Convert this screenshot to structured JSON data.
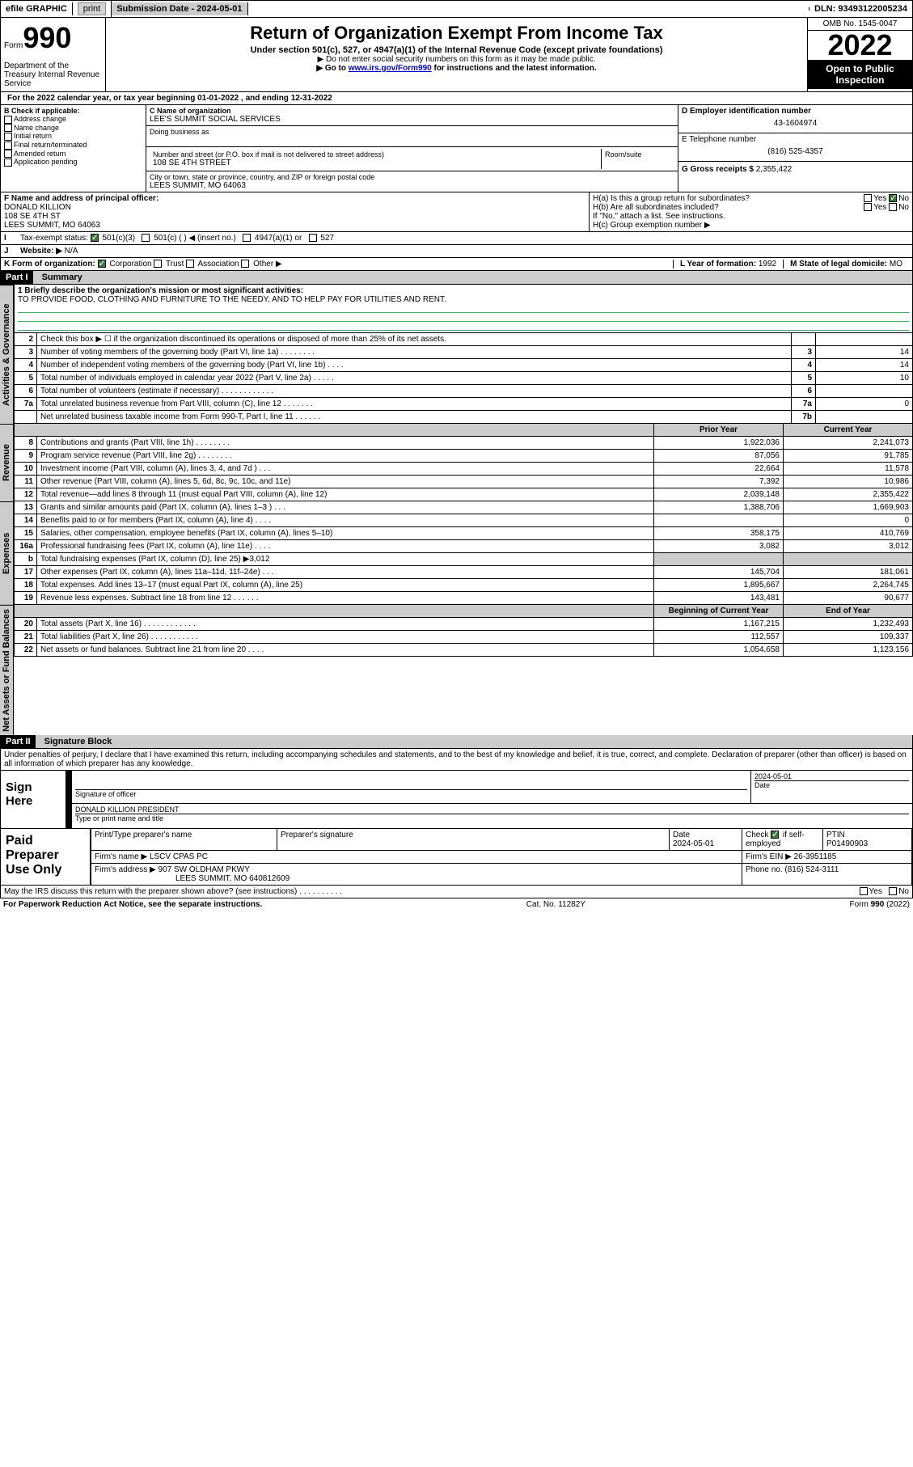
{
  "topbar": {
    "efile": "efile GRAPHIC",
    "print": "print",
    "subdate_label": "Submission Date - 2024-05-01",
    "dln": "DLN: 93493122005234"
  },
  "header": {
    "form_label": "Form",
    "form_no": "990",
    "title": "Return of Organization Exempt From Income Tax",
    "subtitle": "Under section 501(c), 527, or 4947(a)(1) of the Internal Revenue Code (except private foundations)",
    "note1": "▶ Do not enter social security numbers on this form as it may be made public.",
    "note2_pre": "▶ Go to ",
    "note2_link": "www.irs.gov/Form990",
    "note2_post": " for instructions and the latest information.",
    "omb": "OMB No. 1545-0047",
    "year": "2022",
    "open": "Open to Public Inspection",
    "dept": "Department of the Treasury Internal Revenue Service"
  },
  "lineA": "For the 2022 calendar year, or tax year beginning 01-01-2022    , and ending 12-31-2022",
  "boxB": {
    "label": "B Check if applicable:",
    "opts": [
      "Address change",
      "Name change",
      "Initial return",
      "Final return/terminated",
      "Amended return",
      "Application pending"
    ]
  },
  "boxC": {
    "name_label": "C Name of organization",
    "name": "LEE'S SUMMIT SOCIAL SERVICES",
    "dba_label": "Doing business as",
    "street_label": "Number and street (or P.O. box if mail is not delivered to street address)",
    "room_label": "Room/suite",
    "street": "108 SE 4TH STREET",
    "city_label": "City or town, state or province, country, and ZIP or foreign postal code",
    "city": "LEES SUMMIT, MO  64063"
  },
  "boxD": {
    "label": "D Employer identification number",
    "val": "43-1604974"
  },
  "boxE": {
    "label": "E Telephone number",
    "val": "(816) 525-4357"
  },
  "boxG": {
    "label": "G Gross receipts $",
    "val": "2,355,422"
  },
  "boxF": {
    "label": "F Name and address of principal officer:",
    "name": "DONALD KILLION",
    "addr1": "108 SE 4TH ST",
    "addr2": "LEES SUMMIT, MO  64063"
  },
  "boxH": {
    "a": "H(a)  Is this a group return for subordinates?",
    "b": "H(b)  Are all subordinates included?",
    "note": "If \"No,\" attach a list. See instructions.",
    "c": "H(c)  Group exemption number ▶",
    "yes": "Yes",
    "no": "No"
  },
  "rowI": {
    "label": "Tax-exempt status:",
    "opts": [
      "501(c)(3)",
      "501(c) (  ) ◀ (insert no.)",
      "4947(a)(1) or",
      "527"
    ]
  },
  "rowJ": {
    "label": "Website: ▶",
    "val": "N/A"
  },
  "rowK": {
    "label": "K Form of organization:",
    "opts": [
      "Corporation",
      "Trust",
      "Association",
      "Other ▶"
    ]
  },
  "rowL": {
    "label": "L Year of formation:",
    "val": "1992"
  },
  "rowM": {
    "label": "M State of legal domicile:",
    "val": "MO"
  },
  "part1": {
    "hdr": "Part I",
    "title": "Summary"
  },
  "summary1": {
    "label": "1  Briefly describe the organization's mission or most significant activities:",
    "text": "TO PROVIDE FOOD, CLOTHING AND FURNITURE TO THE NEEDY, AND TO HELP PAY FOR UTILITIES AND RENT."
  },
  "vtabs": {
    "gov": "Activities & Governance",
    "rev": "Revenue",
    "exp": "Expenses",
    "net": "Net Assets or Fund Balances"
  },
  "gov_lines": [
    {
      "n": "2",
      "t": "Check this box ▶ ☐  if the organization discontinued its operations or disposed of more than 25% of its net assets.",
      "box": "",
      "v": ""
    },
    {
      "n": "3",
      "t": "Number of voting members of the governing body (Part VI, line 1a)  .   .   .   .   .   .   .   .",
      "box": "3",
      "v": "14"
    },
    {
      "n": "4",
      "t": "Number of independent voting members of the governing body (Part VI, line 1b)  .   .   .   .",
      "box": "4",
      "v": "14"
    },
    {
      "n": "5",
      "t": "Total number of individuals employed in calendar year 2022 (Part V, line 2a)  .   .   .   .   .",
      "box": "5",
      "v": "10"
    },
    {
      "n": "6",
      "t": "Total number of volunteers (estimate if necessary)  .   .   .   .   .   .   .   .   .   .   .   .",
      "box": "6",
      "v": ""
    },
    {
      "n": "7a",
      "t": "Total unrelated business revenue from Part VIII, column (C), line 12  .   .   .   .   .   .   .",
      "box": "7a",
      "v": "0"
    },
    {
      "n": "",
      "t": "Net unrelated business taxable income from Form 990-T, Part I, line 11  .   .   .   .   .   .",
      "box": "7b",
      "v": ""
    }
  ],
  "col_hdrs": {
    "prior": "Prior Year",
    "cur": "Current Year",
    "beg": "Beginning of Current Year",
    "end": "End of Year"
  },
  "rev_lines": [
    {
      "n": "8",
      "t": "Contributions and grants (Part VIII, line 1h)   .   .   .   .   .   .   .   .",
      "p": "1,922,036",
      "c": "2,241,073"
    },
    {
      "n": "9",
      "t": "Program service revenue (Part VIII, line 2g)   .   .   .   .   .   .   .   .",
      "p": "87,056",
      "c": "91,785"
    },
    {
      "n": "10",
      "t": "Investment income (Part VIII, column (A), lines 3, 4, and 7d )   .   .   .",
      "p": "22,664",
      "c": "11,578"
    },
    {
      "n": "11",
      "t": "Other revenue (Part VIII, column (A), lines 5, 6d, 8c, 9c, 10c, and 11e)",
      "p": "7,392",
      "c": "10,986"
    },
    {
      "n": "12",
      "t": "Total revenue—add lines 8 through 11 (must equal Part VIII, column (A), line 12)",
      "p": "2,039,148",
      "c": "2,355,422"
    }
  ],
  "exp_lines": [
    {
      "n": "13",
      "t": "Grants and similar amounts paid (Part IX, column (A), lines 1–3 )   .   .   .",
      "p": "1,388,706",
      "c": "1,669,903"
    },
    {
      "n": "14",
      "t": "Benefits paid to or for members (Part IX, column (A), line 4)   .   .   .   .",
      "p": "",
      "c": "0"
    },
    {
      "n": "15",
      "t": "Salaries, other compensation, employee benefits (Part IX, column (A), lines 5–10)",
      "p": "358,175",
      "c": "410,769"
    },
    {
      "n": "16a",
      "t": "Professional fundraising fees (Part IX, column (A), line 11e)   .   .   .   .",
      "p": "3,082",
      "c": "3,012"
    },
    {
      "n": "b",
      "t": "Total fundraising expenses (Part IX, column (D), line 25) ▶3,012",
      "p": "shade",
      "c": "shade"
    },
    {
      "n": "17",
      "t": "Other expenses (Part IX, column (A), lines 11a–11d, 11f–24e)   .   .   .",
      "p": "145,704",
      "c": "181,061"
    },
    {
      "n": "18",
      "t": "Total expenses. Add lines 13–17 (must equal Part IX, column (A), line 25)",
      "p": "1,895,667",
      "c": "2,264,745"
    },
    {
      "n": "19",
      "t": "Revenue less expenses. Subtract line 18 from line 12   .   .   .   .   .   .",
      "p": "143,481",
      "c": "90,677"
    }
  ],
  "net_lines": [
    {
      "n": "20",
      "t": "Total assets (Part X, line 16)   .   .   .   .   .   .   .   .   .   .   .   .",
      "p": "1,167,215",
      "c": "1,232,493"
    },
    {
      "n": "21",
      "t": "Total liabilities (Part X, line 26)   .   .   .   .   .   .   .   .   .   .   .",
      "p": "112,557",
      "c": "109,337"
    },
    {
      "n": "22",
      "t": "Net assets or fund balances. Subtract line 21 from line 20   .   .   .   .",
      "p": "1,054,658",
      "c": "1,123,156"
    }
  ],
  "part2": {
    "hdr": "Part II",
    "title": "Signature Block"
  },
  "sig": {
    "decl": "Under penalties of perjury, I declare that I have examined this return, including accompanying schedules and statements, and to the best of my knowledge and belief, it is true, correct, and complete. Declaration of preparer (other than officer) is based on all information of which preparer has any knowledge.",
    "signhere": "Sign Here",
    "sig_officer": "Signature of officer",
    "date": "Date",
    "date_val": "2024-05-01",
    "officer": "DONALD KILLION  PRESIDENT",
    "typeprint": "Type or print name and title"
  },
  "paid": {
    "label": "Paid Preparer Use Only",
    "col1": "Print/Type preparer's name",
    "col2": "Preparer's signature",
    "col3": "Date",
    "date_val": "2024-05-01",
    "col4a": "Check",
    "col4b": "if self-employed",
    "col5": "PTIN",
    "ptin": "P01490903",
    "firm_label": "Firm's name    ▶",
    "firm": "LSCV CPAS PC",
    "ein_label": "Firm's EIN ▶",
    "ein": "26-3951185",
    "addr_label": "Firm's address ▶",
    "addr1": "907 SW OLDHAM PKWY",
    "addr2": "LEES SUMMIT, MO  640812609",
    "phone_label": "Phone no.",
    "phone": "(816) 524-3111"
  },
  "discuss": "May the IRS discuss this return with the preparer shown above? (see instructions)   .   .   .   .   .   .   .   .   .   .",
  "footer": {
    "left": "For Paperwork Reduction Act Notice, see the separate instructions.",
    "mid": "Cat. No. 11282Y",
    "right": "Form 990 (2022)"
  }
}
